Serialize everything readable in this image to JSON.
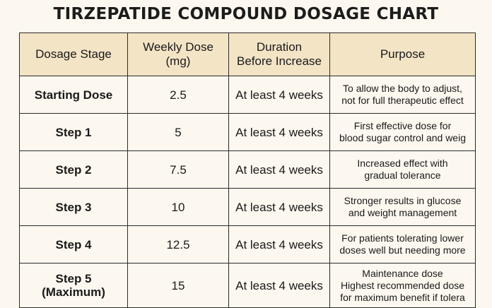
{
  "title": "TIRZEPATIDE COMPOUND DOSAGE CHART",
  "table": {
    "headers": [
      "Dosage Stage",
      "Weekly Dose\n(mg)",
      "Duration\nBefore Increase",
      "Purpose"
    ],
    "rows": [
      {
        "stage": "Starting Dose",
        "dose": "2.5",
        "duration": "At least 4 weeks",
        "purpose": "To allow the body to adjust,\nnot for full therapeutic effect"
      },
      {
        "stage": "Step 1",
        "dose": "5",
        "duration": "At least 4 weeks",
        "purpose": "First effective dose for\nblood sugar control and weig"
      },
      {
        "stage": "Step 2",
        "dose": "7.5",
        "duration": "At least 4 weeks",
        "purpose": "Increased effect with\ngradual tolerance"
      },
      {
        "stage": "Step 3",
        "dose": "10",
        "duration": "At least 4 weeks",
        "purpose": "Stronger results in glucose\nand weight management"
      },
      {
        "stage": "Step 4",
        "dose": "12.5",
        "duration": "At least 4 weeks",
        "purpose": "For patients tolerating lower\ndoses well but needing more"
      },
      {
        "stage": "Step 5\n(Maximum)",
        "dose": "15",
        "duration": "At least 4 weeks",
        "purpose": "Maintenance dose\nHighest recommended dose\nfor maximum benefit if tolera"
      }
    ]
  },
  "colors": {
    "background": "#fcf7ef",
    "header_fill": "#f3e4c6",
    "border": "#2b2b2b"
  }
}
